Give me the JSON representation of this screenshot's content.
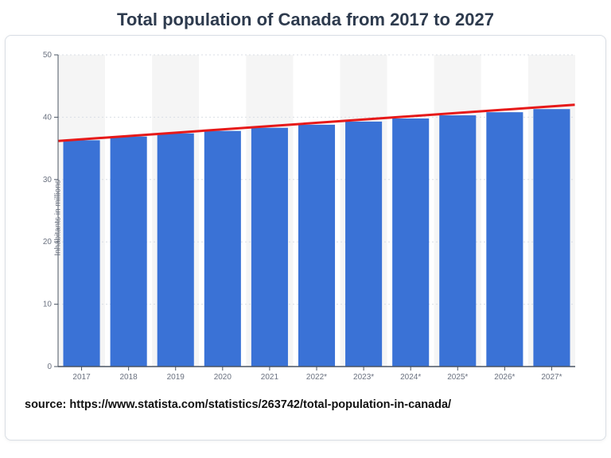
{
  "title": "Total population of Canada from 2017 to 2027",
  "source_line": "source: https://www.statista.com/statistics/263742/total-population-in-canada/",
  "chart": {
    "type": "bar",
    "ylabel": "Inhabitants in millions",
    "categories": [
      "2017",
      "2018",
      "2019",
      "2020",
      "2021",
      "2022*",
      "2023*",
      "2024*",
      "2025*",
      "2026*",
      "2027*"
    ],
    "values": [
      36.3,
      36.9,
      37.4,
      37.8,
      38.3,
      38.8,
      39.3,
      39.8,
      40.3,
      40.8,
      41.3
    ],
    "ylim": [
      0,
      50
    ],
    "yticks": [
      0,
      10,
      20,
      30,
      40,
      50
    ],
    "bar_color": "#3a72d6",
    "bg_stripe_color": "#f5f5f5",
    "grid_color": "#d9dee5",
    "axis_color": "#4b5563",
    "trend_color": "#e61919",
    "trend_width": 3,
    "trend_start": 36.2,
    "trend_end": 42.0,
    "bar_width_ratio": 0.78,
    "title_fontsize": 22,
    "tick_fontsize": 10,
    "font_family": "Arial"
  }
}
